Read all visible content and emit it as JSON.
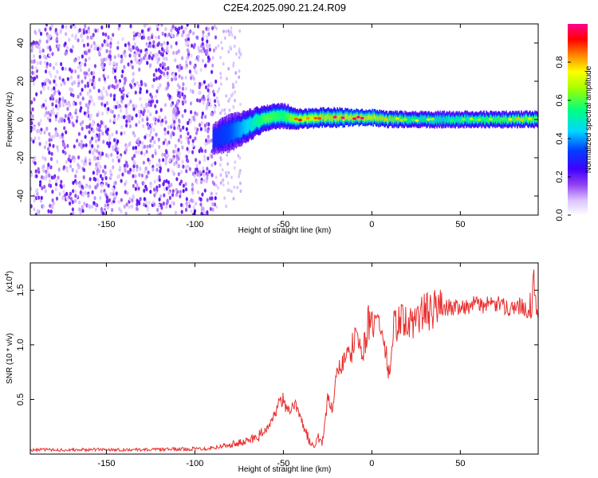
{
  "title": "C2E4.2025.090.21.24.R09",
  "chart_data": [
    {
      "type": "heatmap",
      "xlabel": "Height of straight line (km)",
      "ylabel": "Frequency (Hz)",
      "xlim": [
        -193,
        94
      ],
      "ylim": [
        -50,
        50
      ],
      "x_ticks": [
        -150,
        -100,
        -50,
        0,
        50
      ],
      "y_ticks": [
        -40,
        -20,
        0,
        20,
        40
      ],
      "colorbar": {
        "label": "Normalized spectral amplitude",
        "range": [
          0,
          1
        ],
        "ticks": [
          0.0,
          0.2,
          0.4,
          0.6,
          0.8
        ],
        "tick_labels": [
          "0.0",
          "0.2",
          "0.4",
          "0.6",
          "0.8"
        ],
        "colors": [
          "#ffffff",
          "#c4a0ff",
          "#7a00e8",
          "#0000ff",
          "#00d0ff",
          "#00ff60",
          "#ffff00",
          "#ff8000",
          "#ff0000",
          "#ff00a0"
        ]
      },
      "noise_region": {
        "x_range": [
          -193,
          -88
        ],
        "freq_range": [
          -50,
          50
        ]
      },
      "signal_band": {
        "x": [
          -90,
          -80,
          -70,
          -60,
          -50,
          -40,
          -30,
          -20,
          -10,
          0,
          10,
          20,
          40,
          60,
          80,
          94
        ],
        "center_freq": [
          -10,
          -7,
          -3,
          1,
          2,
          0,
          1,
          1,
          1,
          1,
          0,
          0,
          0,
          0,
          0,
          0
        ],
        "half_width": [
          5,
          6,
          5,
          4,
          4,
          3,
          3,
          3,
          2.5,
          2.5,
          2.5,
          2.5,
          2.5,
          2.5,
          2.5,
          2.5
        ],
        "peak_amplitude": [
          0.3,
          0.35,
          0.45,
          0.6,
          0.55,
          0.75,
          0.85,
          0.9,
          0.95,
          0.95,
          0.7,
          0.55,
          0.5,
          0.55,
          0.6,
          0.6
        ]
      }
    },
    {
      "type": "line",
      "xlabel": "Height of straight line (km)",
      "ylabel": "SNR (10 * v/v)",
      "y_multiplier": "(x10",
      "y_multiplier_exp": "4",
      "y_multiplier_close": ")",
      "xlim": [
        -193,
        94
      ],
      "ylim": [
        0,
        17500
      ],
      "x_ticks": [
        -150,
        -100,
        -50,
        0,
        50
      ],
      "y_ticks": [
        5000,
        10000,
        15000
      ],
      "y_tick_labels": [
        "0.5",
        "1.0",
        "1.5"
      ],
      "line_color": "#e83030",
      "series": [
        {
          "x": [
            -193,
            -170,
            -150,
            -130,
            -110,
            -95,
            -85,
            -80,
            -75,
            -70,
            -65,
            -60,
            -57,
            -55,
            -53,
            -50,
            -48,
            -45,
            -42,
            -40,
            -38,
            -35,
            -32,
            -30,
            -28,
            -25,
            -22,
            -20,
            -18,
            -15,
            -12,
            -10,
            -8,
            -5,
            -2,
            0,
            3,
            6,
            10,
            12,
            15,
            18,
            20,
            25,
            30,
            35,
            40,
            45,
            50,
            55,
            60,
            65,
            70,
            75,
            80,
            85,
            88,
            90,
            92,
            94
          ],
          "y": [
            400,
            380,
            420,
            400,
            450,
            500,
            700,
            900,
            1000,
            1200,
            1600,
            2200,
            3000,
            3500,
            4500,
            5000,
            3800,
            4500,
            4200,
            3500,
            2000,
            1200,
            800,
            1500,
            1000,
            5000,
            4000,
            7000,
            8000,
            9000,
            8500,
            11000,
            10000,
            9500,
            12000,
            11500,
            12500,
            11000,
            7000,
            11500,
            12000,
            12500,
            11500,
            12500,
            13000,
            13200,
            13500,
            13400,
            13600,
            13500,
            13800,
            13600,
            13700,
            13500,
            13400,
            13600,
            13200,
            14000,
            15500,
            13000
          ]
        }
      ]
    }
  ]
}
